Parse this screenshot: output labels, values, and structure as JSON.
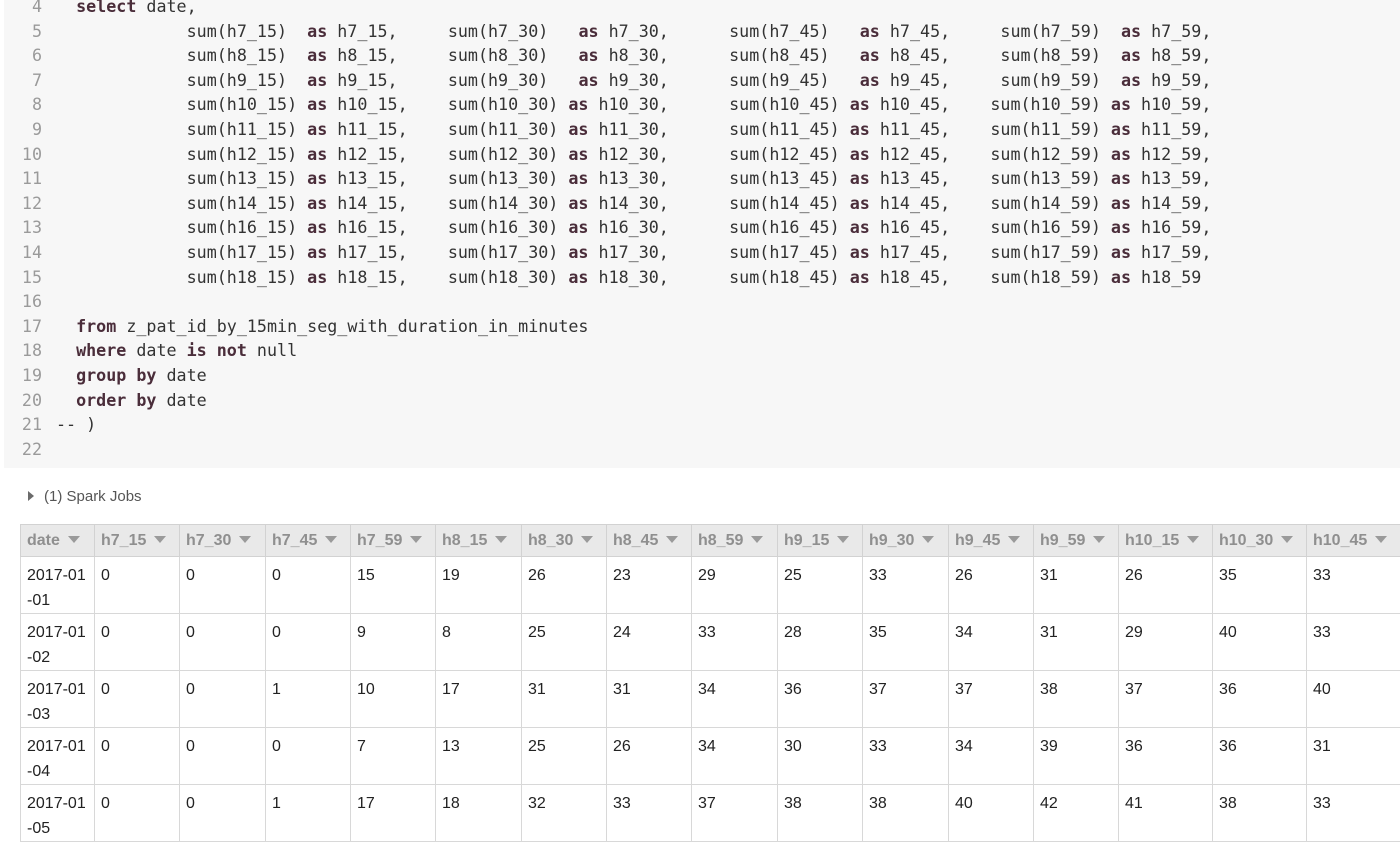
{
  "editor": {
    "lines": [
      {
        "num": "4",
        "tokens": [
          [
            "  ",
            ""
          ],
          [
            "select",
            "kw"
          ],
          [
            " date,",
            ""
          ]
        ]
      },
      {
        "num": "5",
        "tokens": [
          [
            "             sum(h7_15)  ",
            ""
          ],
          [
            "as",
            "kw"
          ],
          [
            " h7_15,     sum(h7_30)   ",
            ""
          ],
          [
            "as",
            "kw"
          ],
          [
            " h7_30,      sum(h7_45)   ",
            ""
          ],
          [
            "as",
            "kw"
          ],
          [
            " h7_45,     sum(h7_59)  ",
            ""
          ],
          [
            "as",
            "kw"
          ],
          [
            " h7_59,",
            ""
          ]
        ]
      },
      {
        "num": "6",
        "tokens": [
          [
            "             sum(h8_15)  ",
            ""
          ],
          [
            "as",
            "kw"
          ],
          [
            " h8_15,     sum(h8_30)   ",
            ""
          ],
          [
            "as",
            "kw"
          ],
          [
            " h8_30,      sum(h8_45)   ",
            ""
          ],
          [
            "as",
            "kw"
          ],
          [
            " h8_45,     sum(h8_59)  ",
            ""
          ],
          [
            "as",
            "kw"
          ],
          [
            " h8_59,",
            ""
          ]
        ]
      },
      {
        "num": "7",
        "tokens": [
          [
            "             sum(h9_15)  ",
            ""
          ],
          [
            "as",
            "kw"
          ],
          [
            " h9_15,     sum(h9_30)   ",
            ""
          ],
          [
            "as",
            "kw"
          ],
          [
            " h9_30,      sum(h9_45)   ",
            ""
          ],
          [
            "as",
            "kw"
          ],
          [
            " h9_45,     sum(h9_59)  ",
            ""
          ],
          [
            "as",
            "kw"
          ],
          [
            " h9_59,",
            ""
          ]
        ]
      },
      {
        "num": "8",
        "tokens": [
          [
            "             sum(h10_15) ",
            ""
          ],
          [
            "as",
            "kw"
          ],
          [
            " h10_15,    sum(h10_30) ",
            ""
          ],
          [
            "as",
            "kw"
          ],
          [
            " h10_30,      sum(h10_45) ",
            ""
          ],
          [
            "as",
            "kw"
          ],
          [
            " h10_45,    sum(h10_59) ",
            ""
          ],
          [
            "as",
            "kw"
          ],
          [
            " h10_59,",
            ""
          ]
        ]
      },
      {
        "num": "9",
        "tokens": [
          [
            "             sum(h11_15) ",
            ""
          ],
          [
            "as",
            "kw"
          ],
          [
            " h11_15,    sum(h11_30) ",
            ""
          ],
          [
            "as",
            "kw"
          ],
          [
            " h11_30,      sum(h11_45) ",
            ""
          ],
          [
            "as",
            "kw"
          ],
          [
            " h11_45,    sum(h11_59) ",
            ""
          ],
          [
            "as",
            "kw"
          ],
          [
            " h11_59,",
            ""
          ]
        ]
      },
      {
        "num": "10",
        "tokens": [
          [
            "             sum(h12_15) ",
            ""
          ],
          [
            "as",
            "kw"
          ],
          [
            " h12_15,    sum(h12_30) ",
            ""
          ],
          [
            "as",
            "kw"
          ],
          [
            " h12_30,      sum(h12_45) ",
            ""
          ],
          [
            "as",
            "kw"
          ],
          [
            " h12_45,    sum(h12_59) ",
            ""
          ],
          [
            "as",
            "kw"
          ],
          [
            " h12_59,",
            ""
          ]
        ]
      },
      {
        "num": "11",
        "tokens": [
          [
            "             sum(h13_15) ",
            ""
          ],
          [
            "as",
            "kw"
          ],
          [
            " h13_15,    sum(h13_30) ",
            ""
          ],
          [
            "as",
            "kw"
          ],
          [
            " h13_30,      sum(h13_45) ",
            ""
          ],
          [
            "as",
            "kw"
          ],
          [
            " h13_45,    sum(h13_59) ",
            ""
          ],
          [
            "as",
            "kw"
          ],
          [
            " h13_59,",
            ""
          ]
        ]
      },
      {
        "num": "12",
        "tokens": [
          [
            "             sum(h14_15) ",
            ""
          ],
          [
            "as",
            "kw"
          ],
          [
            " h14_15,    sum(h14_30) ",
            ""
          ],
          [
            "as",
            "kw"
          ],
          [
            " h14_30,      sum(h14_45) ",
            ""
          ],
          [
            "as",
            "kw"
          ],
          [
            " h14_45,    sum(h14_59) ",
            ""
          ],
          [
            "as",
            "kw"
          ],
          [
            " h14_59,",
            ""
          ]
        ]
      },
      {
        "num": "13",
        "tokens": [
          [
            "             sum(h16_15) ",
            ""
          ],
          [
            "as",
            "kw"
          ],
          [
            " h16_15,    sum(h16_30) ",
            ""
          ],
          [
            "as",
            "kw"
          ],
          [
            " h16_30,      sum(h16_45) ",
            ""
          ],
          [
            "as",
            "kw"
          ],
          [
            " h16_45,    sum(h16_59) ",
            ""
          ],
          [
            "as",
            "kw"
          ],
          [
            " h16_59,",
            ""
          ]
        ]
      },
      {
        "num": "14",
        "tokens": [
          [
            "             sum(h17_15) ",
            ""
          ],
          [
            "as",
            "kw"
          ],
          [
            " h17_15,    sum(h17_30) ",
            ""
          ],
          [
            "as",
            "kw"
          ],
          [
            " h17_30,      sum(h17_45) ",
            ""
          ],
          [
            "as",
            "kw"
          ],
          [
            " h17_45,    sum(h17_59) ",
            ""
          ],
          [
            "as",
            "kw"
          ],
          [
            " h17_59,",
            ""
          ]
        ]
      },
      {
        "num": "15",
        "tokens": [
          [
            "             sum(h18_15) ",
            ""
          ],
          [
            "as",
            "kw"
          ],
          [
            " h18_15,    sum(h18_30) ",
            ""
          ],
          [
            "as",
            "kw"
          ],
          [
            " h18_30,      sum(h18_45) ",
            ""
          ],
          [
            "as",
            "kw"
          ],
          [
            " h18_45,    sum(h18_59) ",
            ""
          ],
          [
            "as",
            "kw"
          ],
          [
            " h18_59",
            ""
          ]
        ]
      },
      {
        "num": "16",
        "tokens": []
      },
      {
        "num": "17",
        "tokens": [
          [
            "  ",
            ""
          ],
          [
            "from",
            "kw"
          ],
          [
            " z_pat_id_by_15min_seg_with_duration_in_minutes",
            ""
          ]
        ]
      },
      {
        "num": "18",
        "tokens": [
          [
            "  ",
            ""
          ],
          [
            "where",
            "kw"
          ],
          [
            " date ",
            ""
          ],
          [
            "is",
            "kw"
          ],
          [
            " ",
            ""
          ],
          [
            "not",
            "kw"
          ],
          [
            " null",
            ""
          ]
        ]
      },
      {
        "num": "19",
        "tokens": [
          [
            "  ",
            ""
          ],
          [
            "group",
            "kw"
          ],
          [
            " ",
            ""
          ],
          [
            "by",
            "kw"
          ],
          [
            " date",
            ""
          ]
        ]
      },
      {
        "num": "20",
        "tokens": [
          [
            "  ",
            ""
          ],
          [
            "order",
            "kw"
          ],
          [
            " ",
            ""
          ],
          [
            "by",
            "kw"
          ],
          [
            " date",
            ""
          ]
        ]
      },
      {
        "num": "21",
        "tokens": [
          [
            "-- )",
            ""
          ]
        ]
      },
      {
        "num": "22",
        "tokens": []
      }
    ]
  },
  "spark_jobs": {
    "label": "(1) Spark Jobs",
    "icon": "caret-right-icon"
  },
  "results": {
    "columns": [
      "date",
      "h7_15",
      "h7_30",
      "h7_45",
      "h7_59",
      "h8_15",
      "h8_30",
      "h8_45",
      "h8_59",
      "h9_15",
      "h9_30",
      "h9_45",
      "h9_59",
      "h10_15",
      "h10_30",
      "h10_45"
    ],
    "rows": [
      [
        "2017-01-01",
        "0",
        "0",
        "0",
        "15",
        "19",
        "26",
        "23",
        "29",
        "25",
        "33",
        "26",
        "31",
        "26",
        "35",
        "33"
      ],
      [
        "2017-01-02",
        "0",
        "0",
        "0",
        "9",
        "8",
        "25",
        "24",
        "33",
        "28",
        "35",
        "34",
        "31",
        "29",
        "40",
        "33"
      ],
      [
        "2017-01-03",
        "0",
        "0",
        "1",
        "10",
        "17",
        "31",
        "31",
        "34",
        "36",
        "37",
        "37",
        "38",
        "37",
        "36",
        "40"
      ],
      [
        "2017-01-04",
        "0",
        "0",
        "0",
        "7",
        "13",
        "25",
        "26",
        "34",
        "30",
        "33",
        "34",
        "39",
        "36",
        "36",
        "31"
      ],
      [
        "2017-01-05",
        "0",
        "0",
        "1",
        "17",
        "18",
        "32",
        "33",
        "37",
        "38",
        "38",
        "40",
        "42",
        "41",
        "38",
        "33"
      ]
    ]
  }
}
